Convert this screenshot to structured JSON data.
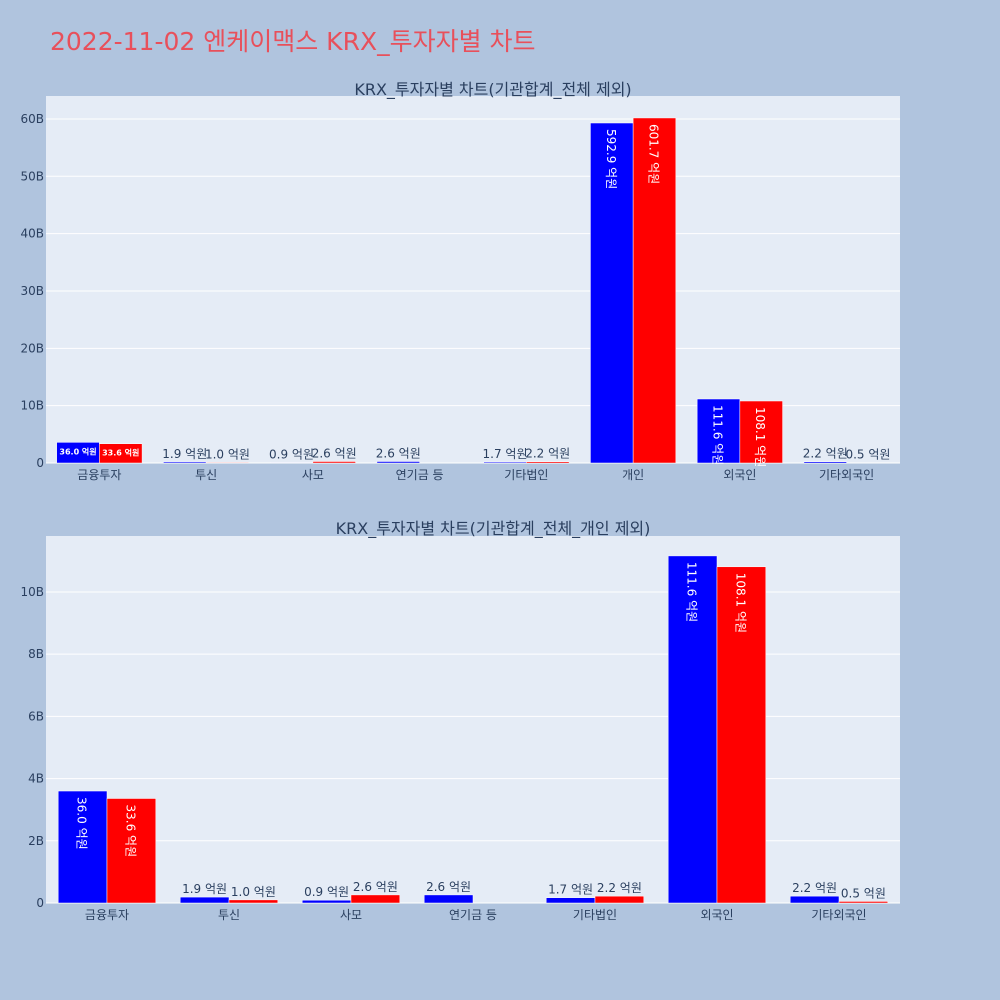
{
  "title": "2022-11-02 엔케이맥스 KRX_투자자별 차트",
  "colors": {
    "background": "#b0c4de",
    "plot_bg": "#e5ecf6",
    "title": "#e8505b",
    "series_a": "#0000ff",
    "series_b": "#ff0000",
    "grid": "#ffffff",
    "text": "#2a3f5f"
  },
  "chart_data": [
    {
      "type": "bar",
      "title": "KRX_투자자별 차트(기관합계_전체 제외)",
      "categories": [
        "금융투자",
        "투신",
        "사모",
        "연기금 등",
        "기타법인",
        "개인",
        "외국인",
        "기타외국인"
      ],
      "series": [
        {
          "values": [
            3.6,
            0.19,
            0.09,
            0.26,
            0.17,
            59.29,
            11.16,
            0.22
          ],
          "labels": [
            "36.0 억원",
            "1.9 억원",
            "0.9 억원",
            "2.6 억원",
            "1.7 억원",
            "592.9 억원",
            "111.6 억원",
            "2.2 억원"
          ]
        },
        {
          "values": [
            3.36,
            0.1,
            0.26,
            0.0,
            0.22,
            60.17,
            10.81,
            0.05
          ],
          "labels": [
            "33.6 억원",
            "1.0 억원",
            "2.6 억원",
            "",
            "2.2 억원",
            "601.7 억원",
            "108.1 억원",
            "0.5 억원"
          ]
        }
      ],
      "y_ticks": [
        "0",
        "10B",
        "20B",
        "30B",
        "40B",
        "50B",
        "60B"
      ],
      "ylim": [
        0,
        64
      ],
      "grid": true
    },
    {
      "type": "bar",
      "title": "KRX_투자자별 차트(기관합계_전체_개인 제외)",
      "categories": [
        "금융투자",
        "투신",
        "사모",
        "연기금 등",
        "기타법인",
        "외국인",
        "기타외국인"
      ],
      "series": [
        {
          "values": [
            3.6,
            0.19,
            0.09,
            0.26,
            0.17,
            11.16,
            0.22
          ],
          "labels": [
            "36.0 억원",
            "1.9 억원",
            "0.9 억원",
            "2.6 억원",
            "1.7 억원",
            "111.6 억원",
            "2.2 억원"
          ]
        },
        {
          "values": [
            3.36,
            0.1,
            0.26,
            0.0,
            0.22,
            10.81,
            0.05
          ],
          "labels": [
            "33.6 억원",
            "1.0 억원",
            "2.6 억원",
            "",
            "2.2 억원",
            "108.1 억원",
            "0.5 억원"
          ]
        }
      ],
      "y_ticks": [
        "0",
        "2B",
        "4B",
        "6B",
        "8B",
        "10B"
      ],
      "ylim": [
        0,
        11.8
      ],
      "grid": true
    }
  ]
}
